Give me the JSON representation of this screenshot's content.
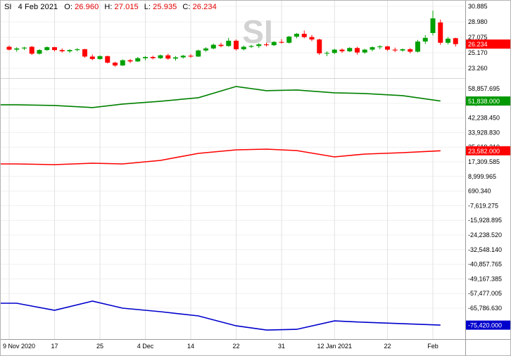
{
  "title_bar": {
    "symbol": "SI",
    "date": "4 Feb 2021",
    "open_label": "O:",
    "open": "26.960",
    "high_label": "H:",
    "high": "27.015",
    "low_label": "L:",
    "low": "25.935",
    "close_label": "C:",
    "close": "26.234"
  },
  "watermark": "SI",
  "colors": {
    "up": "#00a000",
    "down": "#ff0000",
    "grid_v": "#e2e2e2",
    "grid_h": "#f0f0f0",
    "axis_text": "#000000",
    "axis_line": "#9b9b9b",
    "panel_divider": "#d4d4d4",
    "watermark": "#d2d2d2",
    "badge_text": "#ffffff"
  },
  "chart_data": {
    "type": "candlestick+line",
    "grid": "on",
    "x_labels": [
      {
        "t": "9 Nov 2020",
        "i": 0
      },
      {
        "t": "17",
        "i": 6
      },
      {
        "t": "25",
        "i": 12
      },
      {
        "t": "4 Dec",
        "i": 18
      },
      {
        "t": "14",
        "i": 24
      },
      {
        "t": "22",
        "i": 30
      },
      {
        "t": "31",
        "i": 36
      },
      {
        "t": "12 Jan 2021",
        "i": 43
      },
      {
        "t": "22",
        "i": 50
      },
      {
        "t": "Feb",
        "i": 56
      }
    ],
    "last_price": {
      "value": 26.234,
      "label": "26.234",
      "color": "#ff0000"
    },
    "panels": [
      {
        "name": "price",
        "type": "candlestick",
        "ylim": [
          22.047,
          31.578
        ],
        "axis_ticks": [
          {
            "v": 30.885,
            "t": "30.885"
          },
          {
            "v": 28.98,
            "t": "28.980"
          },
          {
            "v": 27.075,
            "t": "27.075"
          },
          {
            "v": 25.17,
            "t": "25.170"
          },
          {
            "v": 23.26,
            "t": "23.260"
          }
        ],
        "candles": [
          [
            "2020-11-09",
            25.9,
            26.05,
            25.45,
            25.55
          ],
          [
            "2020-11-10",
            25.55,
            25.85,
            25.3,
            25.7
          ],
          [
            "2020-11-11",
            25.7,
            25.9,
            25.5,
            25.8
          ],
          [
            "2020-11-12",
            25.9,
            26.0,
            24.9,
            25.05
          ],
          [
            "2020-11-13",
            25.05,
            25.6,
            24.95,
            25.5
          ],
          [
            "2020-11-16",
            25.5,
            25.95,
            25.4,
            25.85
          ],
          [
            "2020-11-17",
            25.85,
            25.9,
            25.35,
            25.5
          ],
          [
            "2020-11-18",
            25.5,
            25.7,
            25.2,
            25.35
          ],
          [
            "2020-11-19",
            25.35,
            25.6,
            25.15,
            25.5
          ],
          [
            "2020-11-20",
            25.5,
            25.75,
            25.35,
            25.6
          ],
          [
            "2020-11-23",
            25.6,
            25.65,
            24.55,
            24.7
          ],
          [
            "2020-11-24",
            24.7,
            24.95,
            24.25,
            24.4
          ],
          [
            "2020-11-25",
            24.4,
            24.85,
            24.3,
            24.75
          ],
          [
            "2020-11-27",
            24.75,
            24.8,
            23.85,
            23.95
          ],
          [
            "2020-11-30",
            23.95,
            24.05,
            23.45,
            23.6
          ],
          [
            "2020-12-01",
            23.6,
            24.35,
            23.55,
            24.25
          ],
          [
            "2020-12-02",
            24.25,
            24.4,
            23.9,
            24.1
          ],
          [
            "2020-12-03",
            24.1,
            24.65,
            24.05,
            24.5
          ],
          [
            "2020-12-04",
            24.5,
            24.75,
            24.25,
            24.65
          ],
          [
            "2020-12-07",
            24.65,
            24.8,
            24.35,
            24.5
          ],
          [
            "2020-12-08",
            24.5,
            24.95,
            24.4,
            24.85
          ],
          [
            "2020-12-09",
            24.85,
            25.05,
            24.3,
            24.45
          ],
          [
            "2020-12-10",
            24.45,
            24.75,
            24.2,
            24.6
          ],
          [
            "2020-12-11",
            24.6,
            24.9,
            24.45,
            24.8
          ],
          [
            "2020-12-14",
            24.8,
            25.0,
            24.55,
            24.7
          ],
          [
            "2020-12-15",
            24.7,
            25.55,
            24.65,
            25.45
          ],
          [
            "2020-12-16",
            25.45,
            25.85,
            25.3,
            25.7
          ],
          [
            "2020-12-17",
            25.7,
            26.3,
            25.6,
            26.15
          ],
          [
            "2020-12-18",
            26.15,
            26.4,
            25.85,
            26.0
          ],
          [
            "2020-12-21",
            26.0,
            27.0,
            25.9,
            26.65
          ],
          [
            "2020-12-22",
            26.65,
            26.8,
            25.45,
            25.6
          ],
          [
            "2020-12-23",
            25.6,
            26.05,
            25.45,
            25.9
          ],
          [
            "2020-12-24",
            25.9,
            26.15,
            25.75,
            26.0
          ],
          [
            "2020-12-28",
            26.0,
            26.35,
            25.75,
            26.2
          ],
          [
            "2020-12-29",
            26.2,
            26.4,
            25.95,
            26.1
          ],
          [
            "2020-12-30",
            26.1,
            26.6,
            26.0,
            26.5
          ],
          [
            "2020-12-31",
            26.5,
            26.85,
            26.3,
            26.4
          ],
          [
            "2021-01-04",
            26.4,
            27.25,
            26.3,
            27.15
          ],
          [
            "2021-01-05",
            27.15,
            27.6,
            26.95,
            27.5
          ],
          [
            "2021-01-06",
            27.5,
            27.9,
            26.95,
            27.1
          ],
          [
            "2021-01-07",
            27.1,
            27.35,
            26.6,
            26.8
          ],
          [
            "2021-01-08",
            26.8,
            26.9,
            24.9,
            25.1
          ],
          [
            "2021-01-11",
            25.1,
            25.35,
            24.75,
            25.15
          ],
          [
            "2021-01-12",
            25.15,
            25.65,
            25.0,
            25.55
          ],
          [
            "2021-01-13",
            25.55,
            25.7,
            25.15,
            25.35
          ],
          [
            "2021-01-14",
            25.35,
            25.85,
            25.25,
            25.75
          ],
          [
            "2021-01-15",
            25.75,
            25.9,
            24.95,
            25.2
          ],
          [
            "2021-01-19",
            25.2,
            25.65,
            25.05,
            25.55
          ],
          [
            "2021-01-20",
            25.55,
            25.95,
            25.35,
            25.85
          ],
          [
            "2021-01-21",
            25.85,
            26.1,
            25.6,
            25.95
          ],
          [
            "2021-01-22",
            25.95,
            26.0,
            25.4,
            25.55
          ],
          [
            "2021-01-25",
            25.55,
            25.8,
            25.25,
            25.45
          ],
          [
            "2021-01-26",
            25.45,
            25.7,
            25.3,
            25.6
          ],
          [
            "2021-01-27",
            25.6,
            25.75,
            25.1,
            25.3
          ],
          [
            "2021-01-28",
            25.3,
            26.75,
            25.2,
            26.55
          ],
          [
            "2021-01-29",
            26.55,
            27.35,
            26.25,
            27.0
          ],
          [
            "2021-02-01",
            27.6,
            30.35,
            27.3,
            29.4
          ],
          [
            "2021-02-02",
            28.9,
            29.25,
            26.15,
            26.4
          ],
          [
            "2021-02-03",
            26.4,
            27.1,
            26.2,
            26.9
          ],
          [
            "2021-02-04",
            26.96,
            27.015,
            25.935,
            26.234
          ]
        ]
      },
      {
        "name": "indicator",
        "type": "line",
        "ylim": [
          -83364.5,
          64850.2
        ],
        "axis_ticks": [
          {
            "v": 58857.695,
            "t": "58,857.695"
          },
          {
            "v": 50548.075,
            "t": "50,548.075"
          },
          {
            "v": 42238.45,
            "t": "42,238.450"
          },
          {
            "v": 33928.83,
            "t": "33,928.830"
          },
          {
            "v": 25619.21,
            "t": "25,619.210"
          },
          {
            "v": 17309.585,
            "t": "17,309.585"
          },
          {
            "v": 8999.965,
            "t": "8,999.965"
          },
          {
            "v": 690.34,
            "t": "690.340"
          },
          {
            "v": -7619.275,
            "t": "-7,619.275"
          },
          {
            "v": -15928.895,
            "t": "-15,928.895"
          },
          {
            "v": -24238.52,
            "t": "-24,238.520"
          },
          {
            "v": -32548.14,
            "t": "-32,548.140"
          },
          {
            "v": -40857.765,
            "t": "-40,857.765"
          },
          {
            "v": -49167.385,
            "t": "-49,167.385"
          },
          {
            "v": -57477.005,
            "t": "-57,477.005"
          },
          {
            "v": -65786.63,
            "t": "-65,786.630"
          }
        ],
        "point_indices": [
          1,
          6,
          11,
          15,
          20,
          25,
          30,
          34,
          38,
          43,
          47,
          52,
          57
        ],
        "series": [
          {
            "name": "green-line",
            "color": "#008000",
            "values": [
              49700,
              49300,
              48100,
              50100,
              51700,
              53700,
              60100,
              57700,
              58100,
              56500,
              56100,
              54900,
              51838
            ],
            "last_label": "51,838.000",
            "badge_color": "#009900"
          },
          {
            "name": "red-line",
            "color": "#ff0000",
            "values": [
              16100,
              15700,
              16500,
              16100,
              18100,
              22100,
              24100,
              24500,
              23700,
              20100,
              21700,
              22500,
              23582
            ],
            "last_label": "23,582.000",
            "badge_color": "#ff0000"
          },
          {
            "name": "blue-line",
            "color": "#0000cd",
            "values": [
              -63000,
              -67000,
              -61800,
              -65800,
              -67800,
              -70200,
              -75800,
              -78200,
              -77800,
              -73000,
              -73800,
              -74600,
              -75420
            ],
            "last_label": "-75,420.000",
            "badge_color": "#0000cd"
          }
        ]
      }
    ]
  }
}
